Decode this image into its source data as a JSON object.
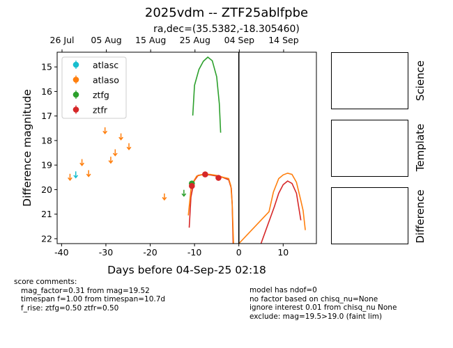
{
  "title": "2025vdm -- ZTF25ablfpbe",
  "subtitle": "ra,dec=(35.5382,-18.305460)",
  "chart_data": {
    "type": "scatter",
    "xlabel": "Days before 04-Sep-25 02:18",
    "ylabel": "Difference magnitude",
    "xlim": [
      -41,
      17.5
    ],
    "ylim": [
      22.2,
      14.4
    ],
    "x_ticks": [
      -40,
      -30,
      -20,
      -10,
      0,
      10
    ],
    "y_ticks": [
      15,
      16,
      17,
      18,
      19,
      20,
      21,
      22
    ],
    "top_axis_ticks": [
      {
        "label": "26 Jul",
        "x": -39.9
      },
      {
        "label": "05 Aug",
        "x": -29.9
      },
      {
        "label": "15 Aug",
        "x": -19.9
      },
      {
        "label": "25 Aug",
        "x": -9.9
      },
      {
        "label": "04 Sep",
        "x": 0.1
      },
      {
        "label": "14 Sep",
        "x": 10.1
      }
    ],
    "vline_x": 0,
    "legend": {
      "placement": "upper-left",
      "entries": [
        {
          "name": "atlasc",
          "color": "#17becf"
        },
        {
          "name": "atlaso",
          "color": "#ff7f0e"
        },
        {
          "name": "ztfg",
          "color": "#2ca02c"
        },
        {
          "name": "ztfr",
          "color": "#d62728"
        }
      ]
    },
    "upper_limits": [
      {
        "band": "atlasc",
        "color": "#17becf",
        "x": -36.8,
        "y": 19.4
      },
      {
        "band": "atlaso",
        "color": "#ff7f0e",
        "x": -38.1,
        "y": 19.5
      },
      {
        "band": "atlaso",
        "color": "#ff7f0e",
        "x": -35.4,
        "y": 18.9
      },
      {
        "band": "atlaso",
        "color": "#ff7f0e",
        "x": -33.9,
        "y": 19.35
      },
      {
        "band": "atlaso",
        "color": "#ff7f0e",
        "x": -30.2,
        "y": 17.6
      },
      {
        "band": "atlaso",
        "color": "#ff7f0e",
        "x": -28.9,
        "y": 18.8
      },
      {
        "band": "atlaso",
        "color": "#ff7f0e",
        "x": -27.9,
        "y": 18.5
      },
      {
        "band": "atlaso",
        "color": "#ff7f0e",
        "x": -26.6,
        "y": 17.85
      },
      {
        "band": "atlaso",
        "color": "#ff7f0e",
        "x": -24.8,
        "y": 18.25
      },
      {
        "band": "atlaso",
        "color": "#ff7f0e",
        "x": -16.8,
        "y": 20.3
      },
      {
        "band": "ztfg",
        "color": "#2ca02c",
        "x": -12.4,
        "y": 20.15
      }
    ],
    "detections": [
      {
        "band": "ztfg",
        "color": "#2ca02c",
        "x": -10.6,
        "y": 19.75,
        "err": 0.1
      },
      {
        "band": "ztfr",
        "color": "#d62728",
        "x": -10.6,
        "y": 19.85,
        "err": 0.12
      },
      {
        "band": "ztfr",
        "color": "#d62728",
        "x": -7.6,
        "y": 19.38,
        "err": 0.08
      },
      {
        "band": "ztfr",
        "color": "#d62728",
        "x": -4.6,
        "y": 19.52,
        "err": 0.1
      }
    ],
    "model_curves": [
      {
        "band": "ztfg",
        "color": "#2ca02c",
        "points": [
          [
            -10.4,
            16.98
          ],
          [
            -10,
            15.75
          ],
          [
            -9,
            15.1
          ],
          [
            -8,
            14.77
          ],
          [
            -7,
            14.6
          ],
          [
            -6,
            14.75
          ],
          [
            -5,
            15.4
          ],
          [
            -4.4,
            16.5
          ],
          [
            -4.1,
            17.68
          ]
        ]
      },
      {
        "band": "ztfr",
        "color": "#d62728",
        "points": [
          [
            -11.2,
            21.55
          ],
          [
            -10.8,
            20.3
          ],
          [
            -10.1,
            19.65
          ],
          [
            -9.2,
            19.42
          ],
          [
            -8,
            19.38
          ],
          [
            -6.5,
            19.4
          ],
          [
            -5,
            19.45
          ],
          [
            -3.7,
            19.5
          ],
          [
            -2.3,
            19.6
          ],
          [
            -1.7,
            19.95
          ],
          [
            -1.5,
            20.6
          ],
          [
            -1.3,
            22.2
          ]
        ]
      },
      {
        "band": "ztfr",
        "color": "#d62728",
        "points": [
          [
            5,
            22.2
          ],
          [
            8,
            20.7
          ],
          [
            9,
            20.15
          ],
          [
            10,
            19.8
          ],
          [
            11,
            19.65
          ],
          [
            12,
            19.75
          ],
          [
            13,
            20.15
          ],
          [
            14,
            21.25
          ]
        ]
      },
      {
        "band": "atlaso",
        "color": "#ff7f0e",
        "points": [
          [
            -11.4,
            21.05
          ],
          [
            -10.7,
            19.8
          ],
          [
            -9.5,
            19.45
          ],
          [
            -8,
            19.38
          ],
          [
            -6.5,
            19.38
          ],
          [
            -5,
            19.42
          ],
          [
            -3.5,
            19.5
          ],
          [
            -2.3,
            19.55
          ],
          [
            -1.8,
            19.85
          ],
          [
            -1.5,
            20.6
          ],
          [
            -1.2,
            22.2
          ]
        ]
      },
      {
        "band": "atlaso",
        "color": "#ff7f0e",
        "points": [
          [
            0,
            22.2
          ],
          [
            6.8,
            20.9
          ],
          [
            7.8,
            20.1
          ],
          [
            9,
            19.55
          ],
          [
            10,
            19.4
          ],
          [
            11,
            19.33
          ],
          [
            12,
            19.38
          ],
          [
            13,
            19.7
          ],
          [
            14,
            20.45
          ],
          [
            14.5,
            20.85
          ],
          [
            15,
            21.65
          ]
        ]
      }
    ]
  },
  "right_panels": [
    {
      "label": "Science"
    },
    {
      "label": "Template"
    },
    {
      "label": "Difference"
    }
  ],
  "comments_left": [
    "score comments:",
    "   mag_factor=0.31 from mag=19.52",
    "   timespan f=1.00 from timespan=10.7d",
    "   f_rise: ztfg=0.50 ztfr=0.50"
  ],
  "comments_right": [
    "model has ndof=0",
    "no factor based on chisq_nu=None",
    "ignore interest 0.01 from chisq_nu None",
    "exclude: mag=19.5>19.0 (faint lim)"
  ]
}
